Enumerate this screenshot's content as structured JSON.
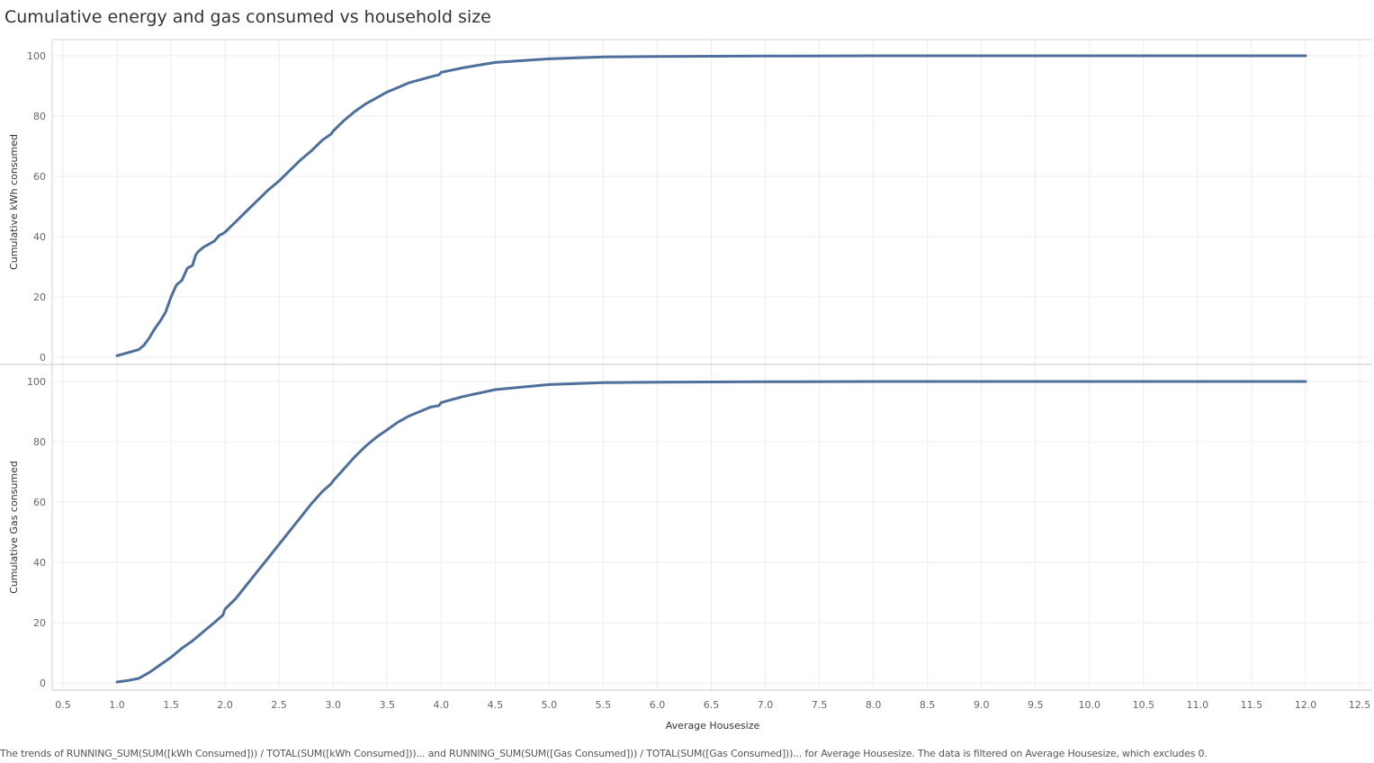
{
  "title": "Cumulative energy and gas consumed vs household size",
  "footer": "The trends of RUNNING_SUM(SUM([kWh Consumed])) / TOTAL(SUM([kWh Consumed]))... and RUNNING_SUM(SUM([Gas Consumed])) / TOTAL(SUM([Gas Consumed]))... for Average Housesize. The data is filtered on Average Housesize, which excludes 0.",
  "colors": {
    "line": "#4e6f9c",
    "grid": "#ececec",
    "axis": "#d0d0d0"
  },
  "chart_data": [
    {
      "type": "line",
      "ylabel": "Cumulative kWh consumed",
      "xlabel": "Average Housesize",
      "xlim": [
        0.5,
        12.5
      ],
      "ylim": [
        0,
        100
      ],
      "yticks": [
        "0",
        "20",
        "40",
        "60",
        "80",
        "100"
      ],
      "x": [
        1.0,
        1.1,
        1.2,
        1.25,
        1.3,
        1.35,
        1.4,
        1.45,
        1.5,
        1.55,
        1.6,
        1.65,
        1.7,
        1.72,
        1.73,
        1.75,
        1.8,
        1.85,
        1.9,
        1.95,
        1.98,
        2.0,
        2.1,
        2.2,
        2.3,
        2.4,
        2.5,
        2.6,
        2.7,
        2.8,
        2.9,
        2.98,
        3.0,
        3.1,
        3.2,
        3.3,
        3.4,
        3.5,
        3.6,
        3.7,
        3.8,
        3.9,
        3.98,
        4.0,
        4.2,
        4.5,
        5.0,
        5.5,
        6.0,
        7.0,
        8.0,
        9.0,
        10.0,
        11.0,
        12.0
      ],
      "y": [
        0.5,
        1.5,
        2.5,
        4,
        6.5,
        9.5,
        12,
        15,
        20,
        24,
        25.5,
        29.5,
        30.5,
        33,
        34,
        35,
        36.5,
        37.5,
        38.5,
        40.5,
        41,
        41.5,
        45,
        48.5,
        52,
        55.5,
        58.5,
        62,
        65.5,
        68.5,
        72,
        74,
        75,
        78.5,
        81.5,
        84,
        86,
        88,
        89.5,
        91,
        92,
        93,
        93.7,
        94.5,
        96,
        97.8,
        99,
        99.6,
        99.8,
        99.9,
        100,
        100,
        100,
        100,
        100
      ]
    },
    {
      "type": "line",
      "ylabel": "Cumulative Gas consumed",
      "xlabel": "Average Housesize",
      "xlim": [
        0.5,
        12.5
      ],
      "ylim": [
        0,
        100
      ],
      "yticks": [
        "0",
        "20",
        "40",
        "60",
        "80",
        "100"
      ],
      "x": [
        1.0,
        1.1,
        1.2,
        1.3,
        1.4,
        1.5,
        1.6,
        1.7,
        1.8,
        1.9,
        1.98,
        2.0,
        2.1,
        2.2,
        2.3,
        2.4,
        2.5,
        2.6,
        2.7,
        2.8,
        2.9,
        2.98,
        3.0,
        3.1,
        3.2,
        3.3,
        3.4,
        3.5,
        3.6,
        3.7,
        3.8,
        3.9,
        3.98,
        4.0,
        4.1,
        4.2,
        4.5,
        5.0,
        5.5,
        6.0,
        7.0,
        8.0,
        9.0,
        10.0,
        11.0,
        12.0
      ],
      "y": [
        0.3,
        0.8,
        1.5,
        3.5,
        6,
        8.5,
        11.5,
        14,
        17,
        20,
        22.5,
        24.5,
        28,
        32.5,
        37,
        41.5,
        46,
        50.5,
        55,
        59.5,
        63.5,
        66,
        67,
        71,
        75,
        78.5,
        81.5,
        84,
        86.5,
        88.5,
        90,
        91.5,
        92,
        93,
        94,
        95,
        97.3,
        99,
        99.6,
        99.8,
        99.9,
        100,
        100,
        100,
        100,
        100
      ]
    }
  ],
  "xticks": [
    "0.5",
    "1.0",
    "1.5",
    "2.0",
    "2.5",
    "3.0",
    "3.5",
    "4.0",
    "4.5",
    "5.0",
    "5.5",
    "6.0",
    "6.5",
    "7.0",
    "7.5",
    "8.0",
    "8.5",
    "9.0",
    "9.5",
    "10.0",
    "10.5",
    "11.0",
    "11.5",
    "12.0",
    "12.5"
  ]
}
